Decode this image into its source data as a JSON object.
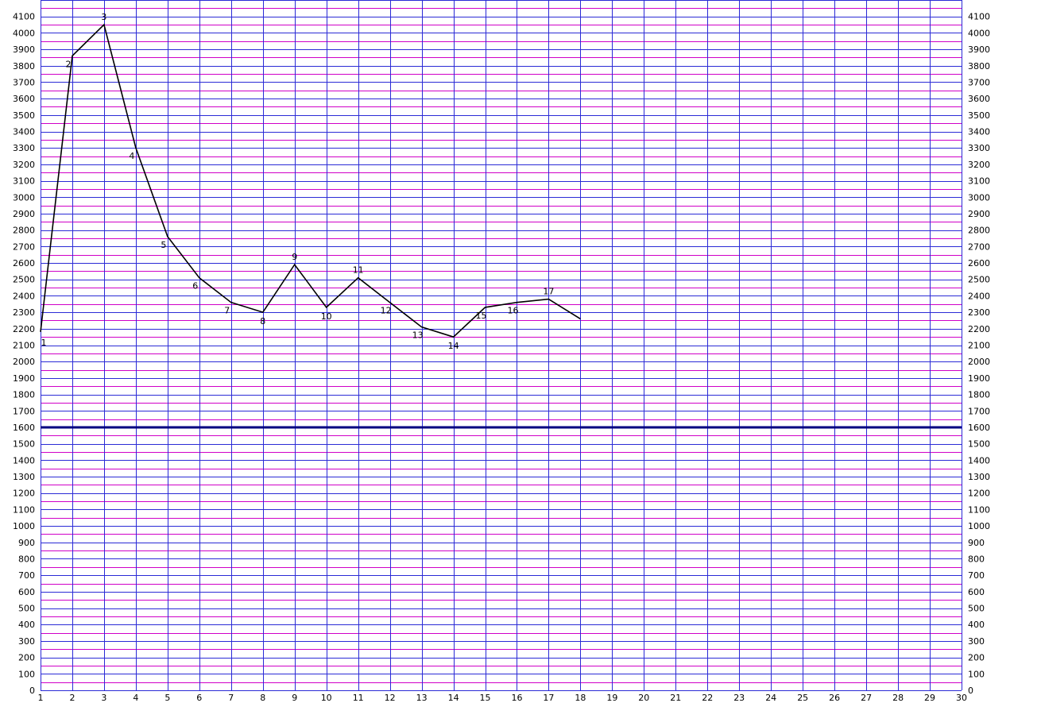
{
  "chart_data": {
    "type": "line",
    "title": "",
    "xlabel": "",
    "ylabel": "",
    "x_ticks": [
      1,
      2,
      3,
      4,
      5,
      6,
      7,
      8,
      9,
      10,
      11,
      12,
      13,
      14,
      15,
      16,
      17,
      18,
      19,
      20,
      21,
      22,
      23,
      24,
      25,
      26,
      27,
      28,
      29,
      30
    ],
    "xlim": [
      1,
      30
    ],
    "ylim": [
      0,
      4200
    ],
    "y_ticks": [
      0,
      100,
      200,
      300,
      400,
      500,
      600,
      700,
      800,
      900,
      1000,
      1100,
      1200,
      1300,
      1400,
      1500,
      1600,
      1700,
      1800,
      1900,
      2000,
      2100,
      2200,
      2300,
      2400,
      2500,
      2600,
      2700,
      2800,
      2900,
      3000,
      3100,
      3200,
      3300,
      3400,
      3500,
      3600,
      3700,
      3800,
      3900,
      4000,
      4100
    ],
    "minor_grid_step": 50,
    "grid": true,
    "x": [
      1,
      2,
      3,
      4,
      5,
      6,
      7,
      8,
      9,
      10,
      11,
      12,
      13,
      14,
      15,
      16,
      17,
      18
    ],
    "values": [
      2180,
      3860,
      4050,
      3300,
      2760,
      2510,
      2360,
      2300,
      2590,
      2330,
      2510,
      2360,
      2210,
      2150,
      2330,
      2360,
      2380,
      2260
    ],
    "point_labels": [
      "1",
      "2",
      "3",
      "4",
      "5",
      "6",
      "7",
      "8",
      "9",
      "10",
      "11",
      "12",
      "13",
      "14",
      "15",
      "16",
      "17",
      ""
    ],
    "reference_line": 1600,
    "colors": {
      "background": "#ffffff",
      "major_grid": "#2b2bd6",
      "minor_grid": "#d000c8",
      "series": "#000000",
      "reference_line": "#000080"
    }
  }
}
